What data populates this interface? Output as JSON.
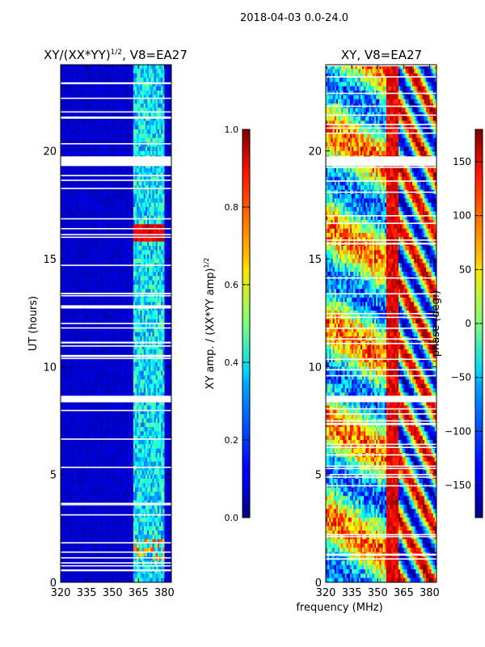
{
  "suptitle": "2018-04-03 0.0-24.0",
  "xlabel_shared": "frequency (MHz)",
  "chart_data": [
    {
      "type": "heatmap",
      "title": "XY/(XX*YY)^1/2, V8=EA27",
      "title_main": "XY/(XX*YY)",
      "title_sup": "1/2",
      "title_rest": ", V8=EA27",
      "ylabel": "UT (hours)",
      "xlim": [
        320,
        384
      ],
      "ylim": [
        0,
        24
      ],
      "x_ticks": [
        320,
        335,
        350,
        365,
        380
      ],
      "y_ticks": [
        0,
        5,
        10,
        15,
        20
      ],
      "colormap": "jet",
      "colorbar": {
        "label": "XY amp. / (XX*YY amp)^1/2",
        "label_main": "XY amp. / (XX*YY amp)",
        "label_sup": "1/2",
        "range": [
          0.0,
          1.0
        ],
        "ticks": [
          0.0,
          0.2,
          0.4,
          0.6,
          0.8,
          1.0
        ],
        "tick_labels": [
          "0.0",
          "0.2",
          "0.4",
          "0.6",
          "0.8",
          "1.0"
        ]
      },
      "gaps_hours": [
        [
          19.3,
          19.75
        ],
        [
          8.35,
          8.65
        ]
      ],
      "bright_band_mhz": [
        362,
        380
      ]
    },
    {
      "type": "heatmap",
      "title": "XY, V8=EA27",
      "ylabel": "",
      "xlim": [
        320,
        384
      ],
      "ylim": [
        0,
        24
      ],
      "x_ticks": [
        320,
        335,
        350,
        365,
        380
      ],
      "y_ticks": [
        0,
        5,
        10,
        15,
        20
      ],
      "colormap": "jet",
      "colorbar": {
        "label": "phase (deg.)",
        "range": [
          -180,
          180
        ],
        "ticks": [
          150,
          100,
          50,
          0,
          -50,
          -100,
          -150
        ],
        "tick_labels": [
          "150",
          "100",
          "50",
          "0",
          "−50",
          "−100",
          "−150"
        ]
      },
      "gaps_hours": [
        [
          19.3,
          19.75
        ],
        [
          8.35,
          8.65
        ]
      ]
    }
  ]
}
